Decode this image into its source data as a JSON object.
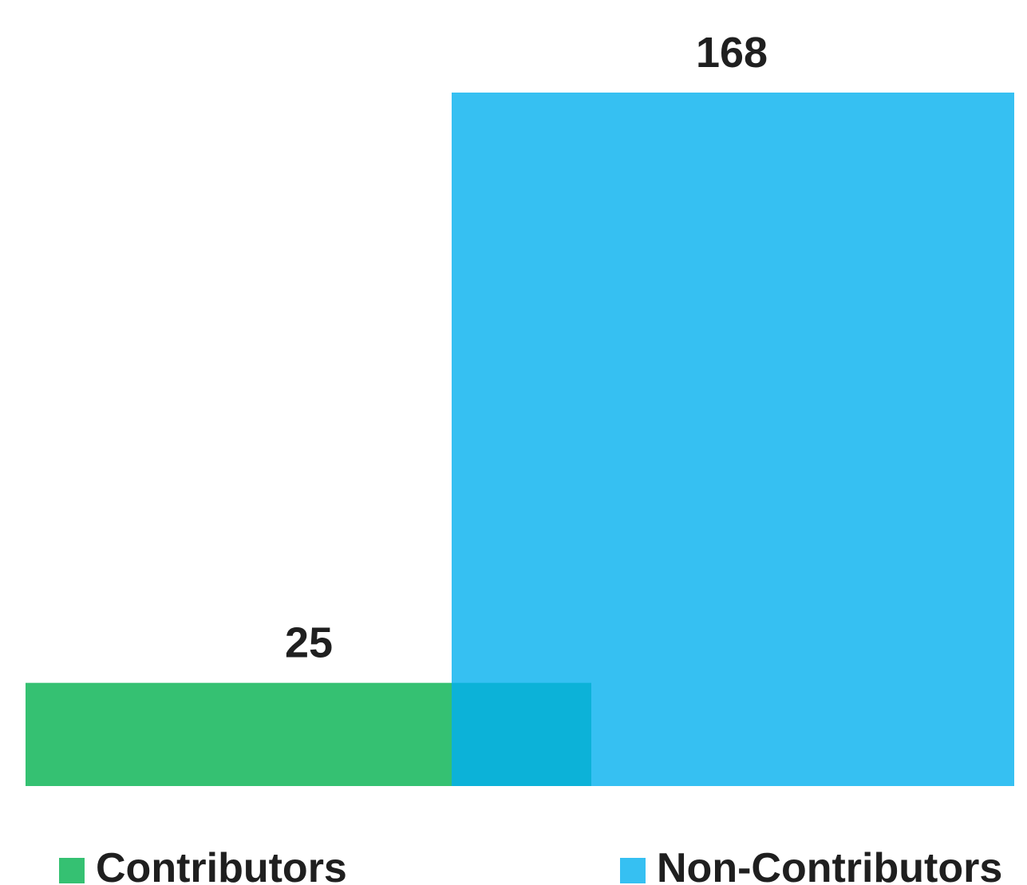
{
  "chart_data": {
    "type": "bar",
    "series": [
      {
        "name": "Contributors",
        "value": 25,
        "color": "#35c172"
      },
      {
        "name": "Non-Contributors",
        "value": 168,
        "color": "#36c0f2"
      }
    ],
    "overlap_color": "#0cb2d8",
    "ylim": [
      0,
      168
    ],
    "grid": false,
    "legend_position": "bottom",
    "title": "",
    "xlabel": "",
    "ylabel": ""
  }
}
